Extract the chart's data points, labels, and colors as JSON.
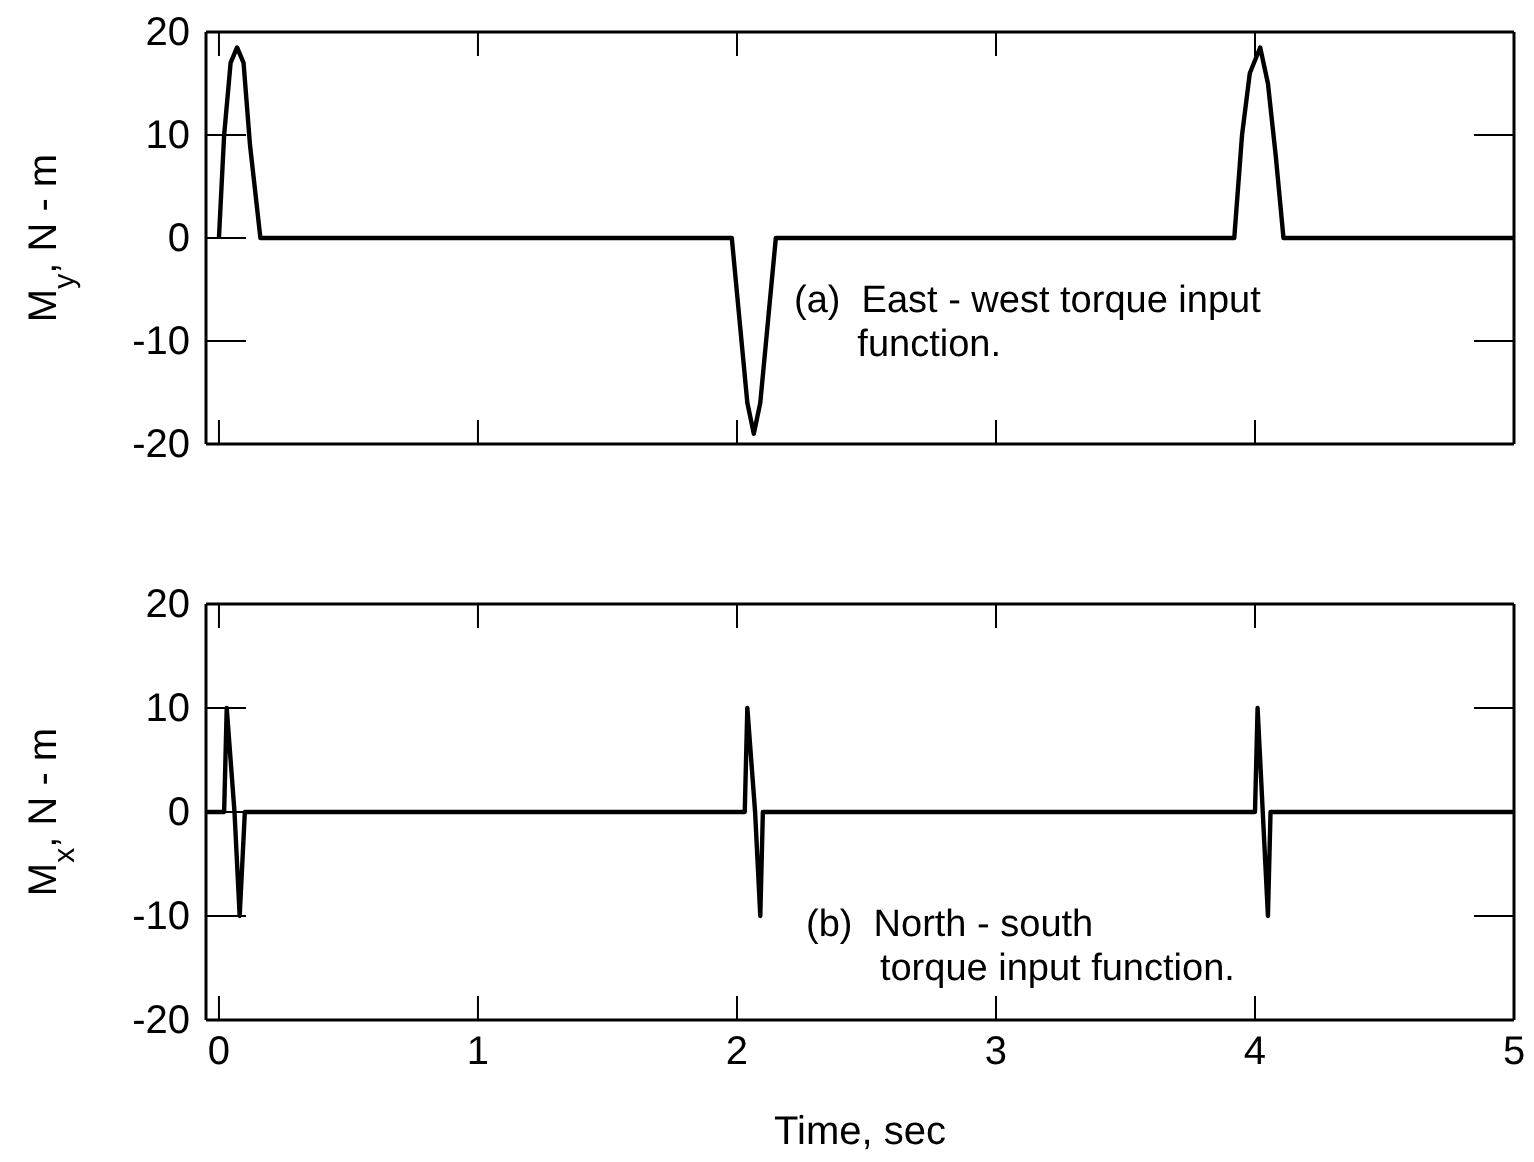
{
  "chart_data": [
    {
      "type": "line",
      "ylabel": "M$_{y}$, N - m",
      "xlim": [
        -0.05,
        5
      ],
      "ylim": [
        -20,
        20
      ],
      "xticks": [
        0,
        1,
        2,
        3,
        4,
        5
      ],
      "yticks": [
        -20,
        -10,
        0,
        10,
        20
      ],
      "tick_labels": "y",
      "grid": false,
      "annotations": [
        "(a)  East - west torque input\n      function."
      ],
      "series": [
        {
          "color": "#000000",
          "x": [
            0,
            0.02,
            0.045,
            0.07,
            0.095,
            0.12,
            0.16,
            1.98,
            2.01,
            2.04,
            2.065,
            2.09,
            2.12,
            2.15,
            3.92,
            3.95,
            3.98,
            4.02,
            4.05,
            4.08,
            4.11,
            5
          ],
          "values": [
            0,
            10,
            17,
            18.5,
            17,
            9,
            0,
            0,
            -8,
            -16,
            -19,
            -16,
            -8,
            0,
            0,
            10,
            16,
            18.5,
            15,
            8,
            0,
            0
          ]
        }
      ]
    },
    {
      "type": "line",
      "ylabel": "M$_{x}$, N - m",
      "xlabel": "Time, sec",
      "xlim": [
        -0.05,
        5
      ],
      "ylim": [
        -20,
        20
      ],
      "xticks": [
        0,
        1,
        2,
        3,
        4,
        5
      ],
      "yticks": [
        -20,
        -10,
        0,
        10,
        20
      ],
      "grid": false,
      "annotations": [
        "(b)  North - south\n       torque input function."
      ],
      "series": [
        {
          "color": "#000000",
          "x": [
            -0.05,
            0.02,
            0.03,
            0.06,
            0.08,
            0.1,
            2.03,
            2.04,
            2.07,
            2.09,
            2.1,
            4.0,
            4.01,
            4.03,
            4.05,
            4.06,
            5
          ],
          "values": [
            0,
            0,
            10,
            0,
            -10,
            0,
            0,
            10,
            0,
            -10,
            0,
            0,
            10,
            0,
            -10,
            0,
            0
          ]
        }
      ]
    }
  ]
}
